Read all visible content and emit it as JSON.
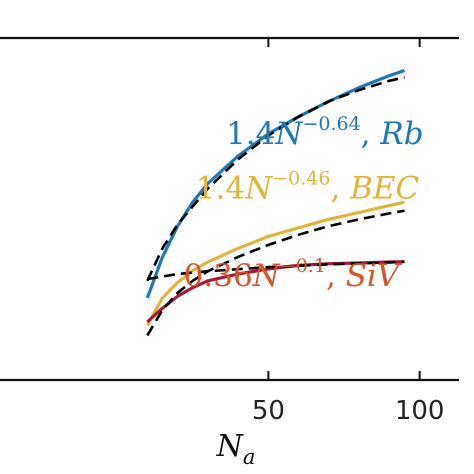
{
  "colors": {
    "blue": "#1f77b4",
    "gold": "#e0b43a",
    "crimson": "#a21a3c",
    "red_text": "#d2572a",
    "fit": "#000000"
  },
  "chart_data": {
    "type": "line",
    "xlabel": "N",
    "xlabel_sub": "a",
    "ylabel": "",
    "xlim": [
      -42,
      113
    ],
    "ylim": [
      0,
      1
    ],
    "x_ticks": [
      50,
      100
    ],
    "x_tick_labels": [
      "50",
      "100"
    ],
    "grid": false,
    "series": [
      {
        "color": "#1f77b4",
        "points": [
          [
            10,
            0.24
          ],
          [
            15,
            0.36
          ],
          [
            20,
            0.45
          ],
          [
            25,
            0.52
          ],
          [
            30,
            0.575
          ],
          [
            40,
            0.655
          ],
          [
            50,
            0.72
          ],
          [
            60,
            0.77
          ],
          [
            70,
            0.815
          ],
          [
            80,
            0.855
          ],
          [
            90,
            0.89
          ],
          [
            95,
            0.905
          ]
        ]
      },
      {
        "color": "#e0b43a",
        "points": [
          [
            10,
            0.16
          ],
          [
            15,
            0.24
          ],
          [
            20,
            0.285
          ],
          [
            25,
            0.32
          ],
          [
            30,
            0.345
          ],
          [
            40,
            0.385
          ],
          [
            50,
            0.42
          ],
          [
            60,
            0.445
          ],
          [
            70,
            0.47
          ],
          [
            80,
            0.49
          ],
          [
            90,
            0.51
          ],
          [
            95,
            0.52
          ]
        ]
      },
      {
        "color": "#a21a3c",
        "points": [
          [
            10,
            0.17
          ],
          [
            15,
            0.21
          ],
          [
            20,
            0.245
          ],
          [
            25,
            0.27
          ],
          [
            30,
            0.29
          ],
          [
            40,
            0.31
          ],
          [
            50,
            0.325
          ],
          [
            60,
            0.335
          ],
          [
            70,
            0.34
          ],
          [
            80,
            0.342
          ],
          [
            90,
            0.345
          ],
          [
            95,
            0.346
          ]
        ]
      },
      {
        "style": "dashed",
        "color": "#000000",
        "points": [
          [
            10,
            0.29
          ],
          [
            15,
            0.385
          ],
          [
            20,
            0.455
          ],
          [
            30,
            0.56
          ],
          [
            40,
            0.645
          ],
          [
            50,
            0.715
          ],
          [
            60,
            0.77
          ],
          [
            70,
            0.815
          ],
          [
            80,
            0.848
          ],
          [
            90,
            0.875
          ],
          [
            95,
            0.885
          ]
        ]
      },
      {
        "style": "dashed",
        "color": "#000000",
        "points": [
          [
            10,
            0.13
          ],
          [
            15,
            0.205
          ],
          [
            20,
            0.255
          ],
          [
            25,
            0.29
          ],
          [
            30,
            0.318
          ],
          [
            40,
            0.36
          ],
          [
            50,
            0.395
          ],
          [
            60,
            0.425
          ],
          [
            70,
            0.45
          ],
          [
            80,
            0.47
          ],
          [
            90,
            0.487
          ],
          [
            95,
            0.495
          ]
        ]
      },
      {
        "style": "dashed",
        "color": "#000000",
        "points": [
          [
            10,
            0.295
          ],
          [
            20,
            0.31
          ],
          [
            30,
            0.318
          ],
          [
            40,
            0.324
          ],
          [
            50,
            0.33
          ],
          [
            60,
            0.334
          ],
          [
            70,
            0.338
          ],
          [
            80,
            0.341
          ],
          [
            90,
            0.344
          ],
          [
            95,
            0.346
          ]
        ]
      }
    ],
    "annotations": [
      {
        "coef": "1.4",
        "base": "N",
        "exp": "−0.64",
        "sep": ", ",
        "label": "Rb",
        "color": "#1f77b4",
        "x": 36,
        "y": 0.69
      },
      {
        "coef": "1.4",
        "base": "N",
        "exp": "−0.46",
        "sep": ", ",
        "label": "BEC",
        "color": "#e0b43a",
        "x": 26,
        "y": 0.53
      },
      {
        "coef": "0.36",
        "base": "N",
        "exp": "−0.1",
        "sep": ", ",
        "label": "SiV",
        "color": "#d2572a",
        "x": 22,
        "y": 0.275
      }
    ]
  }
}
